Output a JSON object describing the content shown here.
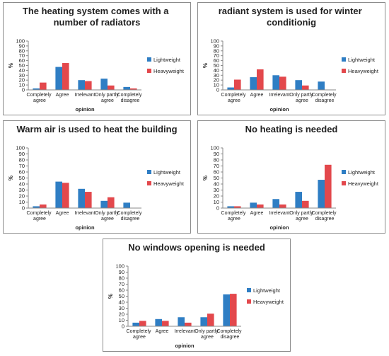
{
  "chart_data": [
    {
      "type": "bar",
      "title": "The heating system comes with a number of radiators",
      "categories": [
        "Completely agree",
        "Agree",
        "Irrelevant",
        "Only partly agree",
        "Completely disagree"
      ],
      "series": [
        {
          "name": "Lightweight",
          "color": "#2f7ec4",
          "values": [
            3,
            47,
            20,
            23,
            6
          ]
        },
        {
          "name": "Heavyweight",
          "color": "#e3484c",
          "values": [
            15,
            55,
            18,
            9,
            3
          ]
        }
      ],
      "ylim": [
        0,
        100
      ],
      "yticks": [
        0,
        10,
        20,
        30,
        40,
        50,
        60,
        70,
        80,
        90,
        100
      ],
      "ylabel": "%",
      "xlabel": "opinion",
      "grid": false,
      "legend": "right"
    },
    {
      "type": "bar",
      "title": "radiant system is used for winter conditionig",
      "categories": [
        "Completely agree",
        "Agree",
        "Irrelevant",
        "Only partly agree",
        "Completely disagree"
      ],
      "series": [
        {
          "name": "Lightweight",
          "color": "#2f7ec4",
          "values": [
            5,
            26,
            30,
            20,
            17
          ]
        },
        {
          "name": "Heavyweight",
          "color": "#e3484c",
          "values": [
            21,
            42,
            27,
            9,
            0
          ]
        }
      ],
      "ylim": [
        0,
        100
      ],
      "yticks": [
        0,
        10,
        20,
        30,
        40,
        50,
        60,
        70,
        80,
        90,
        100
      ],
      "ylabel": "%",
      "xlabel": "opinion",
      "grid": false,
      "legend": "right"
    },
    {
      "type": "bar",
      "title": "Warm air is used to heat the building",
      "categories": [
        "Completely agree",
        "Agree",
        "Irrelevant",
        "Only partly agree",
        "Completely disagree"
      ],
      "series": [
        {
          "name": "Lightweight",
          "color": "#2f7ec4",
          "values": [
            3,
            44,
            32,
            12,
            9
          ]
        },
        {
          "name": "Heavyweight",
          "color": "#e3484c",
          "values": [
            6,
            42,
            27,
            18,
            0
          ]
        }
      ],
      "ylim": [
        0,
        100
      ],
      "yticks": [
        0,
        10,
        20,
        30,
        40,
        50,
        60,
        70,
        80,
        90,
        100
      ],
      "ylabel": "%",
      "xlabel": "opinion",
      "grid": false,
      "legend": "right"
    },
    {
      "type": "bar",
      "title": "No heating is needed",
      "categories": [
        "Completely agree",
        "Agree",
        "Irrelevant",
        "Only partly agree",
        "Completely disagree"
      ],
      "series": [
        {
          "name": "Lightweight",
          "color": "#2f7ec4",
          "values": [
            3,
            9,
            15,
            27,
            47
          ]
        },
        {
          "name": "Heavyweight",
          "color": "#e3484c",
          "values": [
            3,
            6,
            6,
            12,
            72
          ]
        }
      ],
      "ylim": [
        0,
        100
      ],
      "yticks": [
        0,
        10,
        20,
        30,
        40,
        50,
        60,
        70,
        80,
        90,
        100
      ],
      "ylabel": "%",
      "xlabel": "opinion",
      "grid": false,
      "legend": "right"
    },
    {
      "type": "bar",
      "title": "No windows opening is needed",
      "categories": [
        "Completely agree",
        "Agree",
        "Irrelevant",
        "Only partly agree",
        "Completely disagree"
      ],
      "series": [
        {
          "name": "Lightweight",
          "color": "#2f7ec4",
          "values": [
            6,
            12,
            15,
            15,
            53
          ]
        },
        {
          "name": "Heavyweight",
          "color": "#e3484c",
          "values": [
            9,
            9,
            6,
            21,
            54
          ]
        }
      ],
      "ylim": [
        0,
        100
      ],
      "yticks": [
        0,
        10,
        20,
        30,
        40,
        50,
        60,
        70,
        80,
        90,
        100
      ],
      "ylabel": "%",
      "xlabel": "opinion",
      "grid": false,
      "legend": "right"
    }
  ]
}
